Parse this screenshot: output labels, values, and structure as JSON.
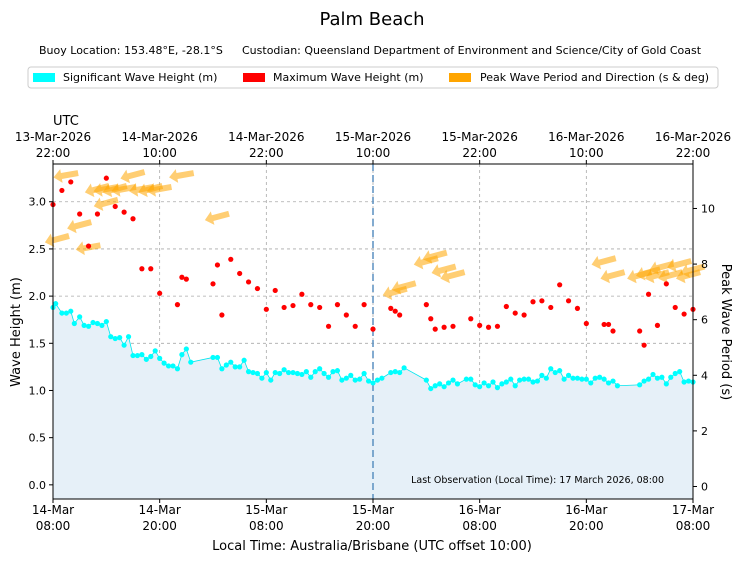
{
  "chart_data": {
    "type": "scatter",
    "title": "Palm Beach",
    "info": {
      "buoy_location": "Buoy Location: 153.48°E, -28.1°S",
      "custodian": "Custodian: Queensland Department of Environment and Science/City of Gold Coast"
    },
    "legend": [
      {
        "label": "Significant Wave Height (m)",
        "color": "#00ffff"
      },
      {
        "label": "Maximum Wave Height (m)",
        "color": "#ff0000"
      },
      {
        "label": "Peak Wave Period and Direction (s & deg)",
        "color": "#ffa500"
      }
    ],
    "top_axis": {
      "label": "UTC",
      "ticks": [
        {
          "x": 0,
          "l1": "13-Mar-2026",
          "l2": "22:00"
        },
        {
          "x": 12,
          "l1": "14-Mar-2026",
          "l2": "10:00"
        },
        {
          "x": 24,
          "l1": "14-Mar-2026",
          "l2": "22:00"
        },
        {
          "x": 36,
          "l1": "15-Mar-2026",
          "l2": "10:00"
        },
        {
          "x": 48,
          "l1": "15-Mar-2026",
          "l2": "22:00"
        },
        {
          "x": 60,
          "l1": "16-Mar-2026",
          "l2": "10:00"
        },
        {
          "x": 72,
          "l1": "16-Mar-2026",
          "l2": "22:00"
        }
      ]
    },
    "bottom_axis": {
      "label": "Local Time: Australia/Brisbane (UTC offset 10:00)",
      "ticks": [
        {
          "x": 0,
          "l1": "14-Mar",
          "l2": "08:00"
        },
        {
          "x": 12,
          "l1": "14-Mar",
          "l2": "20:00"
        },
        {
          "x": 24,
          "l1": "15-Mar",
          "l2": "08:00"
        },
        {
          "x": 36,
          "l1": "15-Mar",
          "l2": "20:00"
        },
        {
          "x": 48,
          "l1": "16-Mar",
          "l2": "08:00"
        },
        {
          "x": 60,
          "l1": "16-Mar",
          "l2": "20:00"
        },
        {
          "x": 72,
          "l1": "17-Mar",
          "l2": "08:00"
        }
      ]
    },
    "x_unit": "hours since 14-Mar 08:00 local",
    "xlim": [
      0,
      72
    ],
    "ylabel_left": "Wave Height (m)",
    "ylim_left": [
      -0.15,
      3.4
    ],
    "yticks_left": [
      "0.0",
      "0.5",
      "1.0",
      "1.5",
      "2.0",
      "2.5",
      "3.0"
    ],
    "ylabel_right": "Peak Wave Period (s)",
    "ylim_right": [
      -0.45,
      11.6
    ],
    "yticks_right": [
      "0",
      "2",
      "4",
      "6",
      "8",
      "10"
    ],
    "vline_x": 36,
    "annotation": "Last Observation (Local Time): 17 March 2026, 08:00",
    "hsig_series": [
      [
        0.0,
        1.88
      ],
      [
        0.3,
        1.92
      ],
      [
        1.0,
        1.82
      ],
      [
        1.5,
        1.82
      ],
      [
        2.0,
        1.84
      ],
      [
        2.4,
        1.71
      ],
      [
        3.0,
        1.78
      ],
      [
        3.5,
        1.69
      ],
      [
        4.0,
        1.68
      ],
      [
        4.5,
        1.72
      ],
      [
        5.0,
        1.71
      ],
      [
        5.5,
        1.69
      ],
      [
        6.0,
        1.73
      ],
      [
        6.5,
        1.57
      ],
      [
        7.0,
        1.55
      ],
      [
        7.5,
        1.56
      ],
      [
        8.0,
        1.48
      ],
      [
        8.5,
        1.57
      ],
      [
        9.0,
        1.37
      ],
      [
        9.5,
        1.37
      ],
      [
        10.0,
        1.38
      ],
      [
        10.5,
        1.33
      ],
      [
        11.0,
        1.36
      ],
      [
        11.5,
        1.42
      ],
      [
        12.0,
        1.34
      ],
      [
        12.5,
        1.29
      ],
      [
        13.0,
        1.26
      ],
      [
        13.5,
        1.26
      ],
      [
        14.0,
        1.23
      ],
      [
        14.5,
        1.38
      ],
      [
        15.0,
        1.44
      ],
      [
        15.5,
        1.3
      ],
      [
        18.0,
        1.35
      ],
      [
        18.5,
        1.35
      ],
      [
        19.0,
        1.23
      ],
      [
        19.5,
        1.27
      ],
      [
        20.0,
        1.3
      ],
      [
        20.5,
        1.25
      ],
      [
        21.0,
        1.25
      ],
      [
        21.5,
        1.32
      ],
      [
        22.0,
        1.2
      ],
      [
        22.5,
        1.19
      ],
      [
        23.0,
        1.18
      ],
      [
        23.5,
        1.13
      ],
      [
        24.0,
        1.19
      ],
      [
        24.5,
        1.11
      ],
      [
        25.0,
        1.19
      ],
      [
        25.5,
        1.18
      ],
      [
        26.0,
        1.22
      ],
      [
        26.5,
        1.19
      ],
      [
        27.0,
        1.19
      ],
      [
        27.5,
        1.18
      ],
      [
        28.0,
        1.17
      ],
      [
        28.5,
        1.2
      ],
      [
        29.0,
        1.14
      ],
      [
        29.5,
        1.2
      ],
      [
        30.0,
        1.23
      ],
      [
        30.5,
        1.18
      ],
      [
        31.0,
        1.14
      ],
      [
        31.5,
        1.2
      ],
      [
        32.0,
        1.21
      ],
      [
        32.5,
        1.11
      ],
      [
        33.0,
        1.13
      ],
      [
        33.5,
        1.16
      ],
      [
        34.0,
        1.11
      ],
      [
        34.5,
        1.12
      ],
      [
        35.0,
        1.18
      ],
      [
        35.5,
        1.1
      ],
      [
        36.0,
        1.08
      ],
      [
        36.5,
        1.11
      ],
      [
        37.0,
        1.13
      ],
      [
        38.0,
        1.19
      ],
      [
        38.5,
        1.2
      ],
      [
        39.0,
        1.19
      ],
      [
        39.5,
        1.24
      ],
      [
        42.0,
        1.11
      ],
      [
        42.5,
        1.02
      ],
      [
        43.0,
        1.05
      ],
      [
        43.5,
        1.07
      ],
      [
        44.0,
        1.04
      ],
      [
        44.5,
        1.08
      ],
      [
        45.0,
        1.11
      ],
      [
        45.5,
        1.07
      ],
      [
        46.5,
        1.12
      ],
      [
        47.0,
        1.12
      ],
      [
        47.5,
        1.06
      ],
      [
        48.0,
        1.04
      ],
      [
        48.5,
        1.08
      ],
      [
        49.0,
        1.05
      ],
      [
        49.5,
        1.09
      ],
      [
        50.0,
        1.03
      ],
      [
        50.5,
        1.07
      ],
      [
        51.0,
        1.09
      ],
      [
        51.5,
        1.12
      ],
      [
        52.0,
        1.05
      ],
      [
        52.5,
        1.11
      ],
      [
        53.0,
        1.12
      ],
      [
        53.5,
        1.12
      ],
      [
        54.0,
        1.09
      ],
      [
        54.5,
        1.1
      ],
      [
        55.0,
        1.16
      ],
      [
        55.5,
        1.13
      ],
      [
        56.0,
        1.23
      ],
      [
        56.5,
        1.19
      ],
      [
        57.0,
        1.21
      ],
      [
        57.5,
        1.12
      ],
      [
        58.0,
        1.16
      ],
      [
        58.5,
        1.13
      ],
      [
        59.0,
        1.13
      ],
      [
        59.5,
        1.12
      ],
      [
        60.0,
        1.12
      ],
      [
        60.5,
        1.08
      ],
      [
        61.0,
        1.13
      ],
      [
        61.5,
        1.14
      ],
      [
        62.0,
        1.12
      ],
      [
        62.5,
        1.08
      ],
      [
        63.0,
        1.1
      ],
      [
        63.5,
        1.05
      ],
      [
        66.0,
        1.06
      ],
      [
        66.5,
        1.1
      ],
      [
        67.0,
        1.12
      ],
      [
        67.5,
        1.17
      ],
      [
        68.0,
        1.13
      ],
      [
        68.5,
        1.14
      ],
      [
        69.0,
        1.07
      ],
      [
        69.5,
        1.14
      ],
      [
        70.0,
        1.18
      ],
      [
        70.5,
        1.2
      ],
      [
        71.0,
        1.09
      ],
      [
        71.5,
        1.1
      ],
      [
        72.0,
        1.09
      ]
    ],
    "hmax_series": [
      [
        0.0,
        2.97
      ],
      [
        1.0,
        3.12
      ],
      [
        2.0,
        3.21
      ],
      [
        3.0,
        2.87
      ],
      [
        4.0,
        2.53
      ],
      [
        5.0,
        2.87
      ],
      [
        6.0,
        3.25
      ],
      [
        7.0,
        2.95
      ],
      [
        8.0,
        2.89
      ],
      [
        9.0,
        2.82
      ],
      [
        10.0,
        2.29
      ],
      [
        11.0,
        2.29
      ],
      [
        12.0,
        2.03
      ],
      [
        14.0,
        1.91
      ],
      [
        14.5,
        2.2
      ],
      [
        15.0,
        2.18
      ],
      [
        18.0,
        2.13
      ],
      [
        18.5,
        2.33
      ],
      [
        19.0,
        1.8
      ],
      [
        20.0,
        2.39
      ],
      [
        21.0,
        2.24
      ],
      [
        22.0,
        2.15
      ],
      [
        23.0,
        2.08
      ],
      [
        24.0,
        1.86
      ],
      [
        25.0,
        2.06
      ],
      [
        26.0,
        1.88
      ],
      [
        27.0,
        1.9
      ],
      [
        28.0,
        2.02
      ],
      [
        29.0,
        1.91
      ],
      [
        30.0,
        1.88
      ],
      [
        31.0,
        1.68
      ],
      [
        32.0,
        1.91
      ],
      [
        33.0,
        1.8
      ],
      [
        34.0,
        1.68
      ],
      [
        35.0,
        1.91
      ],
      [
        36.0,
        1.65
      ],
      [
        38.0,
        1.87
      ],
      [
        38.5,
        1.84
      ],
      [
        39.0,
        1.8
      ],
      [
        42.0,
        1.91
      ],
      [
        42.5,
        1.76
      ],
      [
        43.0,
        1.65
      ],
      [
        44.0,
        1.67
      ],
      [
        45.0,
        1.68
      ],
      [
        47.0,
        1.76
      ],
      [
        48.0,
        1.69
      ],
      [
        49.0,
        1.67
      ],
      [
        50.0,
        1.68
      ],
      [
        51.0,
        1.89
      ],
      [
        52.0,
        1.82
      ],
      [
        53.0,
        1.8
      ],
      [
        54.0,
        1.94
      ],
      [
        55.0,
        1.95
      ],
      [
        56.0,
        1.88
      ],
      [
        57.0,
        2.12
      ],
      [
        58.0,
        1.95
      ],
      [
        59.0,
        1.87
      ],
      [
        60.0,
        1.71
      ],
      [
        62.0,
        1.7
      ],
      [
        62.5,
        1.7
      ],
      [
        63.0,
        1.63
      ],
      [
        66.0,
        1.63
      ],
      [
        66.5,
        1.48
      ],
      [
        67.0,
        2.02
      ],
      [
        68.0,
        1.69
      ],
      [
        69.0,
        2.13
      ],
      [
        70.0,
        1.88
      ],
      [
        71.0,
        1.81
      ],
      [
        72.0,
        1.86
      ]
    ],
    "period_series": [
      [
        0.5,
        8.9,
        -15
      ],
      [
        1.5,
        11.2,
        -10
      ],
      [
        3.0,
        9.4,
        -15
      ],
      [
        4.0,
        8.6,
        -10
      ],
      [
        5.0,
        10.7,
        -15
      ],
      [
        6.0,
        10.2,
        -15
      ],
      [
        6.0,
        10.7,
        -10
      ],
      [
        7.0,
        10.7,
        -15
      ],
      [
        8.0,
        10.7,
        -10
      ],
      [
        9.0,
        11.2,
        -15
      ],
      [
        10.0,
        10.7,
        -10
      ],
      [
        11.0,
        10.7,
        -15
      ],
      [
        12.0,
        10.7,
        -10
      ],
      [
        14.5,
        11.2,
        -10
      ],
      [
        18.5,
        9.7,
        -15
      ],
      [
        38.5,
        7.0,
        -15
      ],
      [
        39.5,
        7.2,
        -15
      ],
      [
        42.0,
        8.1,
        -15
      ],
      [
        43.0,
        8.3,
        -15
      ],
      [
        44.0,
        7.8,
        -15
      ],
      [
        45.0,
        7.6,
        -15
      ],
      [
        62.0,
        8.1,
        -15
      ],
      [
        63.0,
        7.6,
        -15
      ],
      [
        66.0,
        7.6,
        -15
      ],
      [
        67.0,
        7.7,
        -15
      ],
      [
        68.0,
        7.6,
        -15
      ],
      [
        68.5,
        7.9,
        -15
      ],
      [
        69.5,
        7.6,
        -15
      ],
      [
        70.5,
        8.0,
        -15
      ],
      [
        71.5,
        7.6,
        -15
      ],
      [
        72.0,
        7.8,
        -15
      ]
    ]
  }
}
